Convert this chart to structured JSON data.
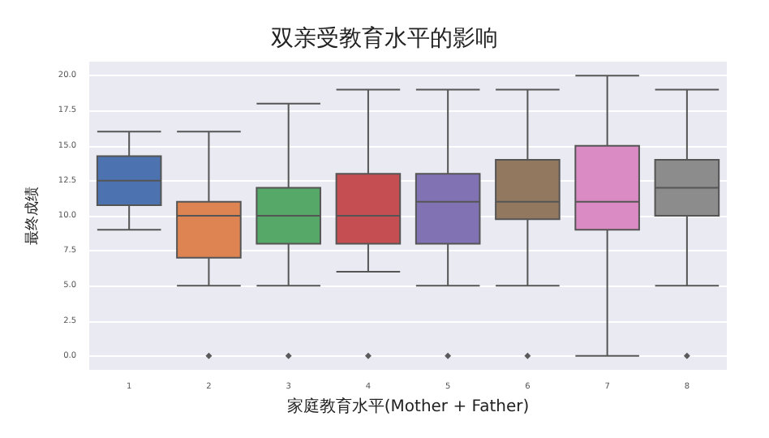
{
  "chart_data": {
    "type": "box",
    "title": "双亲受教育水平的影响",
    "xlabel": "家庭教育水平(Mother + Father)",
    "ylabel": "最终成绩",
    "categories": [
      "1",
      "2",
      "3",
      "4",
      "5",
      "6",
      "7",
      "8"
    ],
    "colors": [
      "#4c72b0",
      "#dd8452",
      "#55a868",
      "#c44e52",
      "#8172b3",
      "#937860",
      "#da8bc3",
      "#8c8c8c"
    ],
    "boxes": [
      {
        "low": 9,
        "q1": 10.75,
        "median": 12.5,
        "q3": 14.25,
        "high": 16
      },
      {
        "low": 5,
        "q1": 7,
        "median": 10,
        "q3": 11,
        "high": 16,
        "outliers": [
          0
        ]
      },
      {
        "low": 5,
        "q1": 8,
        "median": 10,
        "q3": 12,
        "high": 18,
        "outliers": [
          0
        ]
      },
      {
        "low": 6,
        "q1": 8,
        "median": 10,
        "q3": 13,
        "high": 19,
        "outliers": [
          0
        ]
      },
      {
        "low": 5,
        "q1": 8,
        "median": 11,
        "q3": 13,
        "high": 19,
        "outliers": [
          0
        ]
      },
      {
        "low": 5,
        "q1": 9.75,
        "median": 11,
        "q3": 14,
        "high": 19,
        "outliers": [
          0
        ]
      },
      {
        "low": 0,
        "q1": 9,
        "median": 11,
        "q3": 15,
        "high": 20
      },
      {
        "low": 5,
        "q1": 10,
        "median": 12,
        "q3": 14,
        "high": 19,
        "outliers": [
          0
        ]
      }
    ],
    "ylim": [
      -1,
      21
    ],
    "yticks": [
      {
        "value": 0,
        "label": "0.0"
      },
      {
        "value": 2.5,
        "label": "2.5"
      },
      {
        "value": 5,
        "label": "5.0"
      },
      {
        "value": 7.5,
        "label": "7.5"
      },
      {
        "value": 10,
        "label": "10.0"
      },
      {
        "value": 12.5,
        "label": "12.5"
      },
      {
        "value": 15,
        "label": "15.0"
      },
      {
        "value": 17.5,
        "label": "17.5"
      },
      {
        "value": 20,
        "label": "20.0"
      }
    ],
    "grid": "y"
  }
}
